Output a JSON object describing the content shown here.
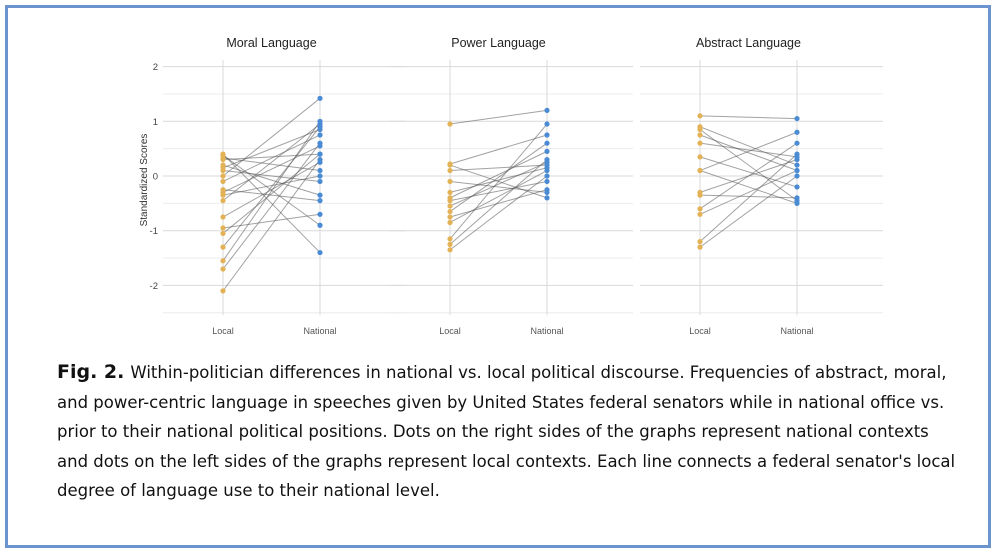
{
  "chart_data": {
    "type": "line",
    "ylabel": "Standardized Scores",
    "ylim": [
      -2.5,
      2.2
    ],
    "yticks": [
      2,
      1,
      0,
      -1,
      -2
    ],
    "categories": [
      "Local",
      "National"
    ],
    "grid": true,
    "colors": {
      "Local": "#e3b256",
      "National": "#4a8bd4",
      "lines": "#555555"
    },
    "panels": [
      {
        "title": "Moral Language",
        "pairs": [
          [
            -2.1,
            0.3
          ],
          [
            -1.7,
            0.6
          ],
          [
            -1.55,
            1.0
          ],
          [
            -1.3,
            0.9
          ],
          [
            -1.05,
            0.4
          ],
          [
            -0.95,
            -0.7
          ],
          [
            -0.75,
            0.25
          ],
          [
            -0.45,
            0.95
          ],
          [
            -0.35,
            0.0
          ],
          [
            -0.3,
            0.55
          ],
          [
            -0.25,
            -0.45
          ],
          [
            -0.1,
            0.75
          ],
          [
            0.0,
            1.42
          ],
          [
            0.1,
            -0.1
          ],
          [
            0.15,
            0.85
          ],
          [
            0.2,
            -0.35
          ],
          [
            0.3,
            0.4
          ],
          [
            0.33,
            0.1
          ],
          [
            0.38,
            -0.9
          ],
          [
            0.4,
            -1.4
          ]
        ]
      },
      {
        "title": "Power Language",
        "pairs": [
          [
            -1.35,
            0.0
          ],
          [
            -1.25,
            0.3
          ],
          [
            -1.15,
            0.95
          ],
          [
            -0.85,
            0.1
          ],
          [
            -0.75,
            -0.25
          ],
          [
            -0.65,
            0.6
          ],
          [
            -0.55,
            0.25
          ],
          [
            -0.45,
            -0.1
          ],
          [
            -0.4,
            0.45
          ],
          [
            -0.3,
            0.15
          ],
          [
            -0.1,
            -0.3
          ],
          [
            0.1,
            0.2
          ],
          [
            0.2,
            -0.4
          ],
          [
            0.22,
            0.75
          ],
          [
            0.95,
            1.2
          ]
        ]
      },
      {
        "title": "Abstract Language",
        "pairs": [
          [
            -1.3,
            0.0
          ],
          [
            -1.2,
            0.4
          ],
          [
            -0.7,
            0.1
          ],
          [
            -0.6,
            0.6
          ],
          [
            -0.35,
            -0.4
          ],
          [
            -0.3,
            0.3
          ],
          [
            0.1,
            -0.5
          ],
          [
            0.1,
            0.8
          ],
          [
            0.35,
            -0.2
          ],
          [
            0.6,
            0.35
          ],
          [
            0.75,
            0.1
          ],
          [
            0.85,
            -0.45
          ],
          [
            0.9,
            0.2
          ],
          [
            1.1,
            1.05
          ]
        ]
      }
    ]
  },
  "caption": {
    "label": "Fig. 2.",
    "text": "Within-politician differences in national vs. local political discourse. Frequencies of abstract, moral, and power-centric language in speeches given by United States federal senators while in national office vs. prior to their national political positions. Dots on the right sides of the graphs represent national contexts and dots on the left sides of the graphs represent local contexts. Each line connects a federal senator's local degree of language use to their national level."
  }
}
